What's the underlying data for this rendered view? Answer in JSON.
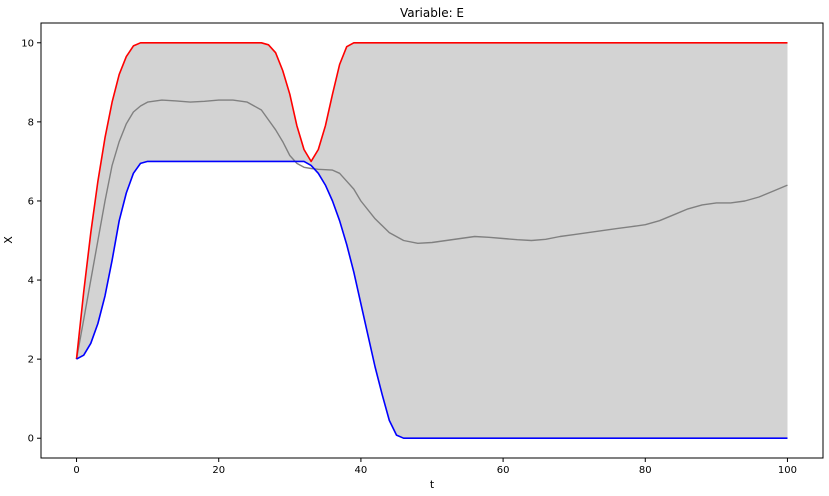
{
  "chart_data": {
    "type": "line",
    "title": "Variable: E",
    "xlabel": "t",
    "ylabel": "X",
    "xlim": [
      -5,
      105
    ],
    "ylim": [
      -0.5,
      10.5
    ],
    "xticks": [
      0,
      20,
      40,
      60,
      80,
      100
    ],
    "yticks": [
      0,
      2,
      4,
      6,
      8,
      10
    ],
    "grid": false,
    "legend": "none",
    "band": {
      "description_color": "#d3d3d3",
      "upper_series": "max",
      "lower_series": "min"
    },
    "series": [
      {
        "name": "",
        "role": "max",
        "color": "#ff0000",
        "x": [
          0,
          1,
          2,
          3,
          4,
          5,
          6,
          7,
          8,
          9,
          10,
          12,
          16,
          20,
          24,
          26,
          27,
          28,
          29,
          30,
          31,
          32,
          33,
          34,
          35,
          36,
          37,
          38,
          39,
          40,
          41,
          42,
          50,
          60,
          70,
          80,
          90,
          100
        ],
        "y": [
          2.0,
          3.7,
          5.2,
          6.5,
          7.6,
          8.5,
          9.2,
          9.65,
          9.92,
          10.0,
          10.0,
          10.0,
          10.0,
          10.0,
          10.0,
          10.0,
          9.95,
          9.75,
          9.3,
          8.7,
          7.9,
          7.3,
          7.0,
          7.3,
          7.9,
          8.7,
          9.45,
          9.9,
          10.0,
          10.0,
          10.0,
          10.0,
          10.0,
          10.0,
          10.0,
          10.0,
          10.0,
          10.0
        ]
      },
      {
        "name": "",
        "role": "min",
        "color": "#0000ff",
        "x": [
          0,
          1,
          2,
          3,
          4,
          5,
          6,
          7,
          8,
          9,
          10,
          12,
          16,
          20,
          24,
          28,
          32,
          33,
          34,
          35,
          36,
          37,
          38,
          39,
          40,
          41,
          42,
          43,
          44,
          45,
          46,
          50,
          60,
          70,
          80,
          90,
          100
        ],
        "y": [
          2.0,
          2.1,
          2.4,
          2.9,
          3.6,
          4.5,
          5.5,
          6.2,
          6.7,
          6.95,
          7.0,
          7.0,
          7.0,
          7.0,
          7.0,
          7.0,
          7.0,
          6.9,
          6.7,
          6.4,
          6.0,
          5.5,
          4.9,
          4.2,
          3.4,
          2.6,
          1.8,
          1.1,
          0.45,
          0.08,
          0.0,
          0.0,
          0.0,
          0.0,
          0.0,
          0.0,
          0.0
        ]
      },
      {
        "name": "",
        "role": "mean",
        "color": "#808080",
        "x": [
          0,
          1,
          2,
          3,
          4,
          5,
          6,
          7,
          8,
          9,
          10,
          12,
          14,
          16,
          18,
          20,
          22,
          24,
          26,
          28,
          29,
          30,
          31,
          32,
          33,
          34,
          36,
          37,
          38,
          39,
          40,
          42,
          44,
          46,
          48,
          50,
          52,
          54,
          56,
          58,
          60,
          62,
          64,
          66,
          68,
          70,
          72,
          74,
          76,
          78,
          80,
          82,
          84,
          86,
          88,
          90,
          92,
          94,
          96,
          98,
          100
        ],
        "y": [
          2.0,
          3.0,
          4.0,
          5.0,
          6.0,
          6.9,
          7.5,
          7.95,
          8.25,
          8.4,
          8.5,
          8.55,
          8.53,
          8.5,
          8.52,
          8.55,
          8.55,
          8.5,
          8.3,
          7.8,
          7.5,
          7.15,
          6.95,
          6.85,
          6.82,
          6.8,
          6.78,
          6.7,
          6.5,
          6.3,
          6.0,
          5.55,
          5.2,
          5.0,
          4.93,
          4.95,
          5.0,
          5.05,
          5.1,
          5.08,
          5.05,
          5.02,
          5.0,
          5.03,
          5.1,
          5.15,
          5.2,
          5.25,
          5.3,
          5.35,
          5.4,
          5.5,
          5.65,
          5.8,
          5.9,
          5.95,
          5.95,
          6.0,
          6.1,
          6.25,
          6.4
        ]
      }
    ]
  }
}
